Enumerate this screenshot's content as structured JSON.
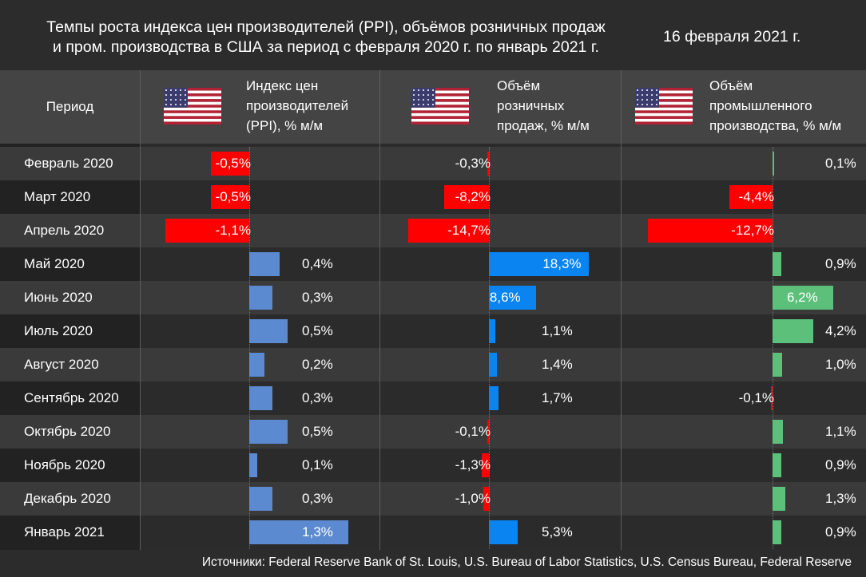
{
  "title_line1": "Темпы роста индекса цен производителей (PPI), объёмов розничных продаж",
  "title_line2": "и пром. производства в США за период с февраля 2020 г. по январь 2021 г.",
  "date": "16 февраля 2021 г.",
  "period_header": "Период",
  "source": "Источники: Federal Reserve Bank of St. Louis, U.S. Bureau of Labor Statistics, U.S. Census Bureau, Federal Reserve",
  "colors": {
    "negative": "#ff0000",
    "ppi": "#5b8ad0",
    "retail": "#0a84f0",
    "industrial": "#5cbf7a"
  },
  "chart_data": {
    "type": "table",
    "categories": [
      "Февраль 2020",
      "Март 2020",
      "Апрель 2020",
      "Май 2020",
      "Июнь 2020",
      "Июль 2020",
      "Август 2020",
      "Сентябрь 2020",
      "Октябрь 2020",
      "Ноябрь 2020",
      "Декабрь 2020",
      "Январь 2021"
    ],
    "series": [
      {
        "header_lines": [
          "Индекс цен",
          "производителей",
          "(PPI), % м/м"
        ],
        "icon": "us-flag-icon",
        "values": [
          -0.5,
          -0.5,
          -1.1,
          0.4,
          0.3,
          0.5,
          0.2,
          0.3,
          0.5,
          0.1,
          0.3,
          1.3
        ],
        "labels": [
          "-0,5%",
          "-0,5%",
          "-1,1%",
          "0,4%",
          "0,3%",
          "0,5%",
          "0,2%",
          "0,3%",
          "0,5%",
          "0,1%",
          "0,3%",
          "1,3%"
        ]
      },
      {
        "header_lines": [
          "Объём",
          "розничных",
          "продаж, % м/м"
        ],
        "icon": "us-flag-icon",
        "values": [
          -0.3,
          -8.2,
          -14.7,
          18.3,
          8.6,
          1.1,
          1.4,
          1.7,
          -0.1,
          -1.3,
          -1.0,
          5.3
        ],
        "labels": [
          "-0,3%",
          "-8,2%",
          "-14,7%",
          "18,3%",
          "8,6%",
          "1,1%",
          "1,4%",
          "1,7%",
          "-0,1%",
          "-1,3%",
          "-1,0%",
          "5,3%"
        ]
      },
      {
        "header_lines": [
          "Объём",
          "промышленного",
          "производства, % м/м"
        ],
        "icon": "us-flag-icon",
        "values": [
          0.1,
          -4.4,
          -12.7,
          0.9,
          6.2,
          4.2,
          1.0,
          -0.1,
          1.1,
          0.9,
          1.3,
          0.9
        ],
        "labels": [
          "0,1%",
          "-4,4%",
          "-12,7%",
          "0,9%",
          "6,2%",
          "4,2%",
          "1,0%",
          "-0,1%",
          "1,1%",
          "0,9%",
          "1,3%",
          "0,9%"
        ]
      }
    ]
  }
}
